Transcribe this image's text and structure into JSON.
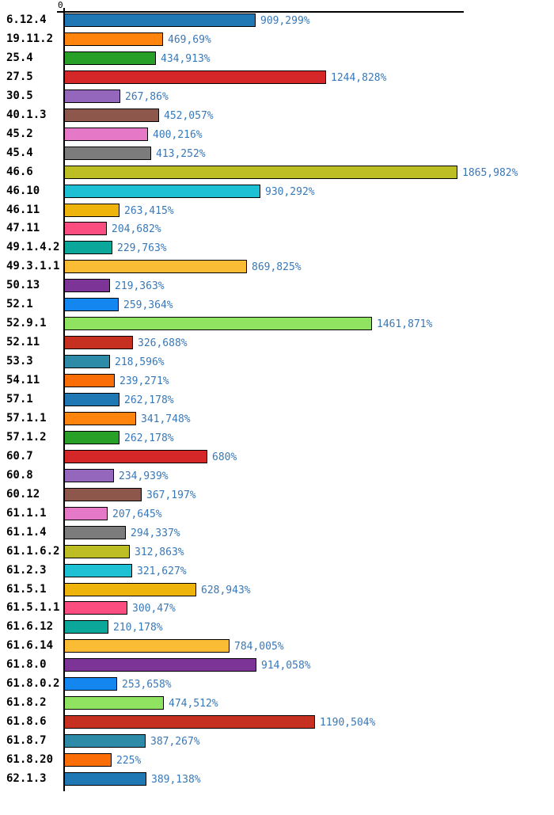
{
  "page": {
    "background_color": "#ffffff",
    "text_color": "#000000"
  },
  "chart_data": {
    "type": "bar",
    "orientation": "horizontal",
    "title": "",
    "xlabel": "",
    "ylabel": "",
    "grid": false,
    "legend": "none",
    "axis": {
      "origin_label": "0",
      "xlim": [
        0,
        1898
      ],
      "value_suffix": "%"
    },
    "style": {
      "value_label_color": "#3878B8",
      "bar_border_color": "#000000",
      "axis_color": "#000000"
    },
    "rows": [
      {
        "category": "6.12.4",
        "value": 909.299,
        "label": "909,299%",
        "color": "#1F77B4"
      },
      {
        "category": "19.11.2",
        "value": 469.69,
        "label": "469,69%",
        "color": "#FF840E"
      },
      {
        "category": "25.4",
        "value": 434.913,
        "label": "434,913%",
        "color": "#28A028"
      },
      {
        "category": "27.5",
        "value": 1244.828,
        "label": "1244,828%",
        "color": "#D62728"
      },
      {
        "category": "30.5",
        "value": 267.86,
        "label": "267,86%",
        "color": "#9467BD"
      },
      {
        "category": "40.1.3",
        "value": 452.057,
        "label": "452,057%",
        "color": "#8D574C"
      },
      {
        "category": "45.2",
        "value": 400.216,
        "label": "400,216%",
        "color": "#E678C8"
      },
      {
        "category": "45.4",
        "value": 413.252,
        "label": "413,252%",
        "color": "#7C7C7C"
      },
      {
        "category": "46.6",
        "value": 1865.982,
        "label": "1865,982%",
        "color": "#BDBE24"
      },
      {
        "category": "46.10",
        "value": 930.292,
        "label": "930,292%",
        "color": "#1EC1D4"
      },
      {
        "category": "46.11",
        "value": 263.415,
        "label": "263,415%",
        "color": "#EFB40C"
      },
      {
        "category": "47.11",
        "value": 204.682,
        "label": "204,682%",
        "color": "#FB4D7F"
      },
      {
        "category": "49.1.4.2",
        "value": 229.763,
        "label": "229,763%",
        "color": "#0AA79A"
      },
      {
        "category": "49.3.1.1",
        "value": 869.825,
        "label": "869,825%",
        "color": "#FBBC35"
      },
      {
        "category": "50.13",
        "value": 219.363,
        "label": "219,363%",
        "color": "#7C3596"
      },
      {
        "category": "52.1",
        "value": 259.364,
        "label": "259,364%",
        "color": "#1486F0"
      },
      {
        "category": "52.9.1",
        "value": 1461.871,
        "label": "1461,871%",
        "color": "#8FE360"
      },
      {
        "category": "52.11",
        "value": 326.688,
        "label": "326,688%",
        "color": "#C63020"
      },
      {
        "category": "53.3",
        "value": 218.596,
        "label": "218,596%",
        "color": "#2E8BA8"
      },
      {
        "category": "54.11",
        "value": 239.271,
        "label": "239,271%",
        "color": "#FB6D06"
      },
      {
        "category": "57.1",
        "value": 262.178,
        "label": "262,178%",
        "color": "#1F77B4"
      },
      {
        "category": "57.1.1",
        "value": 341.748,
        "label": "341,748%",
        "color": "#FF840E"
      },
      {
        "category": "57.1.2",
        "value": 262.178,
        "label": "262,178%",
        "color": "#28A028"
      },
      {
        "category": "60.7",
        "value": 680,
        "label": "680%",
        "color": "#D62728"
      },
      {
        "category": "60.8",
        "value": 234.939,
        "label": "234,939%",
        "color": "#9467BD"
      },
      {
        "category": "60.12",
        "value": 367.197,
        "label": "367,197%",
        "color": "#8D574C"
      },
      {
        "category": "61.1.1",
        "value": 207.645,
        "label": "207,645%",
        "color": "#E678C8"
      },
      {
        "category": "61.1.4",
        "value": 294.337,
        "label": "294,337%",
        "color": "#7C7C7C"
      },
      {
        "category": "61.1.6.2",
        "value": 312.863,
        "label": "312,863%",
        "color": "#BDBE24"
      },
      {
        "category": "61.2.3",
        "value": 321.627,
        "label": "321,627%",
        "color": "#1EC1D4"
      },
      {
        "category": "61.5.1",
        "value": 628.943,
        "label": "628,943%",
        "color": "#EFB40C"
      },
      {
        "category": "61.5.1.1",
        "value": 300.47,
        "label": "300,47%",
        "color": "#FB4D7F"
      },
      {
        "category": "61.6.12",
        "value": 210.178,
        "label": "210,178%",
        "color": "#0AA79A"
      },
      {
        "category": "61.6.14",
        "value": 784.005,
        "label": "784,005%",
        "color": "#FBBC35"
      },
      {
        "category": "61.8.0",
        "value": 914.058,
        "label": "914,058%",
        "color": "#7C3596"
      },
      {
        "category": "61.8.0.2",
        "value": 253.658,
        "label": "253,658%",
        "color": "#1486F0"
      },
      {
        "category": "61.8.2",
        "value": 474.512,
        "label": "474,512%",
        "color": "#8FE360"
      },
      {
        "category": "61.8.6",
        "value": 1190.504,
        "label": "1190,504%",
        "color": "#C63020"
      },
      {
        "category": "61.8.7",
        "value": 387.267,
        "label": "387,267%",
        "color": "#2E8BA8"
      },
      {
        "category": "61.8.20",
        "value": 225,
        "label": "225%",
        "color": "#FB6D06"
      },
      {
        "category": "62.1.3",
        "value": 389.138,
        "label": "389,138%",
        "color": "#1F77B4"
      }
    ]
  }
}
